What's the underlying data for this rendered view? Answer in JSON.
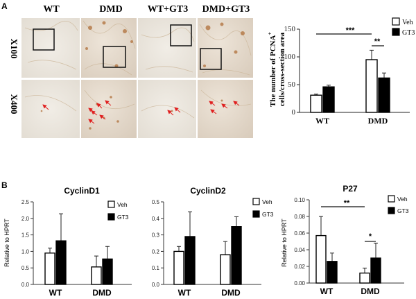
{
  "panel_a": {
    "label": "A",
    "columns": [
      "WT",
      "DMD",
      "WT+GT3",
      "DMD+GT3"
    ],
    "rows": [
      "X100",
      "X400"
    ]
  },
  "panel_b": {
    "label": "B"
  },
  "chart_data": [
    {
      "type": "bar",
      "title": "",
      "ylabel_line1": "The number of PCNA",
      "ylabel_sup": "+",
      "ylabel_line2": "cells/cross-section area",
      "xlabel": "",
      "categories": [
        "WT",
        "DMD"
      ],
      "series": [
        {
          "name": "Veh",
          "values": [
            31,
            95
          ],
          "errors": [
            2,
            17
          ],
          "fill": "#ffffff"
        },
        {
          "name": "GT3",
          "values": [
            46,
            62
          ],
          "errors": [
            3,
            9
          ],
          "fill": "#000000"
        }
      ],
      "ylim": [
        0,
        150
      ],
      "yticks": [
        0,
        50,
        100,
        150
      ],
      "legend": "top-right",
      "significance": [
        {
          "text": "***"
        },
        {
          "text": "**"
        }
      ]
    },
    {
      "type": "bar",
      "title": "CyclinD1",
      "ylabel": "Relative to HPRT",
      "xlabel": "",
      "categories": [
        "WT",
        "DMD"
      ],
      "series": [
        {
          "name": "Veh",
          "values": [
            0.95,
            0.53
          ],
          "errors": [
            0.15,
            0.33
          ],
          "fill": "#ffffff"
        },
        {
          "name": "GT3",
          "values": [
            1.32,
            0.77
          ],
          "errors": [
            0.82,
            0.38
          ],
          "fill": "#000000"
        }
      ],
      "ylim": [
        0,
        2.5
      ],
      "yticks": [
        "0.0",
        "0.5",
        "1.0",
        "1.5",
        "2.0",
        "2.5"
      ],
      "legend": "top-right",
      "significance": []
    },
    {
      "type": "bar",
      "title": "CyclinD2",
      "ylabel": "",
      "xlabel": "",
      "categories": [
        "WT",
        "DMD"
      ],
      "series": [
        {
          "name": "Veh",
          "values": [
            0.2,
            0.18
          ],
          "errors": [
            0.03,
            0.08
          ],
          "fill": "#ffffff"
        },
        {
          "name": "GT3",
          "values": [
            0.29,
            0.35
          ],
          "errors": [
            0.15,
            0.06
          ],
          "fill": "#000000"
        }
      ],
      "ylim": [
        0,
        0.5
      ],
      "yticks": [
        "0.0",
        "0.1",
        "0.2",
        "0.3",
        "0.4",
        "0.5"
      ],
      "legend": "top-right",
      "significance": []
    },
    {
      "type": "bar",
      "title": "P27",
      "ylabel": "Relative to HPRT",
      "xlabel": "",
      "categories": [
        "WT",
        "DMD"
      ],
      "series": [
        {
          "name": "Veh",
          "values": [
            0.057,
            0.012
          ],
          "errors": [
            0.023,
            0.006
          ],
          "fill": "#ffffff"
        },
        {
          "name": "GT3",
          "values": [
            0.026,
            0.03
          ],
          "errors": [
            0.01,
            0.018
          ],
          "fill": "#000000"
        }
      ],
      "ylim": [
        0,
        0.1
      ],
      "yticks": [
        "0.00",
        "0.02",
        "0.04",
        "0.06",
        "0.08",
        "0.10"
      ],
      "legend": "top-right",
      "significance": [
        {
          "text": "**"
        },
        {
          "text": "*"
        }
      ]
    }
  ]
}
